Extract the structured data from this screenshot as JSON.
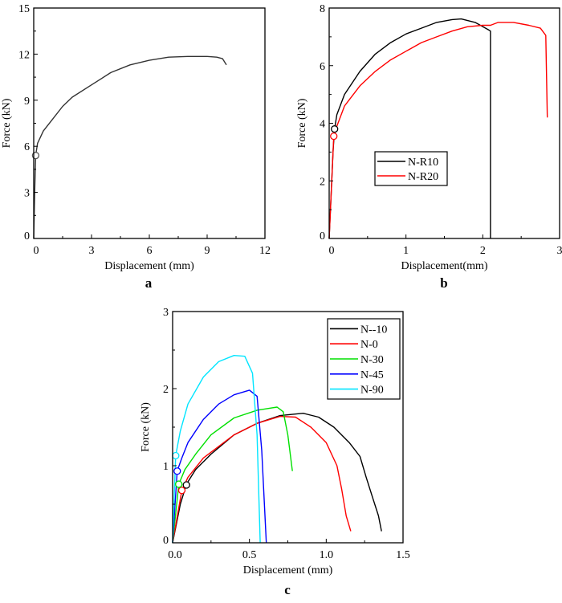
{
  "chart_data": [
    {
      "type": "line",
      "panel_label": "a",
      "xlabel": "Displacement (mm)",
      "ylabel": "Force (kN)",
      "xlim": [
        0,
        12
      ],
      "ylim": [
        0,
        15
      ],
      "xticks": [
        0,
        3,
        6,
        9,
        12
      ],
      "yticks": [
        0,
        3,
        6,
        9,
        12,
        15
      ],
      "grid": false,
      "legend": null,
      "series": [
        {
          "color": "#333333",
          "x": [
            0,
            0.05,
            0.1,
            0.2,
            0.5,
            1,
            1.5,
            2,
            3,
            4,
            5,
            6,
            7,
            8,
            9,
            9.5,
            9.8,
            10
          ],
          "y": [
            0,
            3,
            5.4,
            6.2,
            7.0,
            7.8,
            8.6,
            9.2,
            10.0,
            10.8,
            11.3,
            11.6,
            11.8,
            11.85,
            11.85,
            11.8,
            11.7,
            11.3
          ],
          "marker": {
            "x": 0.1,
            "y": 5.4,
            "fill": "#ffffff",
            "stroke": "#555555"
          }
        }
      ]
    },
    {
      "type": "line",
      "panel_label": "b",
      "xlabel": "Displacement(mm)",
      "ylabel": "Force (kN)",
      "xlim": [
        0,
        3
      ],
      "ylim": [
        0,
        8
      ],
      "xticks": [
        0,
        1,
        2,
        3
      ],
      "yticks": [
        0,
        2,
        4,
        6,
        8
      ],
      "grid": false,
      "legend": "center-left",
      "series": [
        {
          "name": "N-R10",
          "color": "#000000",
          "x": [
            0,
            0.05,
            0.07,
            0.1,
            0.2,
            0.4,
            0.6,
            0.8,
            1,
            1.2,
            1.4,
            1.6,
            1.72,
            1.9,
            2.07,
            2.1,
            2.1
          ],
          "y": [
            0,
            3,
            3.8,
            4.3,
            5.0,
            5.8,
            6.4,
            6.8,
            7.1,
            7.3,
            7.5,
            7.6,
            7.62,
            7.5,
            7.25,
            7.2,
            0
          ],
          "marker": {
            "x": 0.07,
            "y": 3.8
          }
        },
        {
          "name": "N-R20",
          "color": "#ff0000",
          "x": [
            0,
            0.06,
            0.1,
            0.2,
            0.4,
            0.6,
            0.8,
            1,
            1.2,
            1.4,
            1.6,
            1.8,
            2.0,
            2.1,
            2.2,
            2.4,
            2.6,
            2.75,
            2.82,
            2.84
          ],
          "y": [
            0,
            3.55,
            3.9,
            4.6,
            5.3,
            5.8,
            6.2,
            6.5,
            6.8,
            7.0,
            7.2,
            7.35,
            7.4,
            7.4,
            7.5,
            7.5,
            7.4,
            7.3,
            7.05,
            4.2
          ],
          "marker": {
            "x": 0.06,
            "y": 3.55
          }
        }
      ]
    },
    {
      "type": "line",
      "panel_label": "c",
      "xlabel": "Displacement (mm)",
      "ylabel": "Force (kN)",
      "xlim": [
        0,
        1.5
      ],
      "ylim": [
        0,
        3
      ],
      "xticks": [
        "0.0",
        "0.5",
        "1.0",
        "1.5"
      ],
      "yticks": [
        0,
        1,
        2,
        3
      ],
      "grid": false,
      "legend": "top-right",
      "series": [
        {
          "name": "N--10",
          "color": "#000000",
          "x": [
            0,
            0.05,
            0.09,
            0.15,
            0.25,
            0.4,
            0.55,
            0.7,
            0.85,
            0.95,
            1.05,
            1.15,
            1.22,
            1.26,
            1.3,
            1.34,
            1.36
          ],
          "y": [
            0,
            0.5,
            0.76,
            0.95,
            1.15,
            1.4,
            1.55,
            1.65,
            1.68,
            1.63,
            1.5,
            1.3,
            1.12,
            0.85,
            0.6,
            0.35,
            0.15
          ],
          "marker": {
            "x": 0.09,
            "y": 0.75
          }
        },
        {
          "name": "N-0",
          "color": "#ff0000",
          "x": [
            0,
            0.06,
            0.1,
            0.2,
            0.4,
            0.55,
            0.7,
            0.8,
            0.9,
            1.0,
            1.07,
            1.1,
            1.13,
            1.16
          ],
          "y": [
            0,
            0.68,
            0.85,
            1.1,
            1.4,
            1.55,
            1.64,
            1.63,
            1.5,
            1.3,
            1.0,
            0.7,
            0.35,
            0.15
          ],
          "marker": {
            "x": 0.06,
            "y": 0.68
          }
        },
        {
          "name": "N-30",
          "color": "#00e000",
          "x": [
            0,
            0.04,
            0.08,
            0.15,
            0.25,
            0.4,
            0.55,
            0.68,
            0.72,
            0.75,
            0.78
          ],
          "y": [
            0,
            0.76,
            0.95,
            1.15,
            1.4,
            1.62,
            1.72,
            1.76,
            1.7,
            1.4,
            0.93
          ],
          "marker": {
            "x": 0.04,
            "y": 0.76
          }
        },
        {
          "name": "N-45",
          "color": "#0000ff",
          "x": [
            0,
            0.03,
            0.06,
            0.1,
            0.2,
            0.3,
            0.4,
            0.5,
            0.55,
            0.58,
            0.61
          ],
          "y": [
            0,
            0.93,
            1.1,
            1.3,
            1.6,
            1.8,
            1.92,
            1.98,
            1.9,
            1.2,
            0
          ],
          "marker": {
            "x": 0.03,
            "y": 0.93
          }
        },
        {
          "name": "N-90",
          "color": "#00e5ff",
          "x": [
            0,
            0.02,
            0.05,
            0.1,
            0.2,
            0.3,
            0.4,
            0.47,
            0.52,
            0.55,
            0.57
          ],
          "y": [
            0,
            1.13,
            1.45,
            1.8,
            2.15,
            2.35,
            2.43,
            2.42,
            2.2,
            1.4,
            0
          ],
          "marker": {
            "x": 0.02,
            "y": 1.13
          }
        }
      ]
    }
  ]
}
